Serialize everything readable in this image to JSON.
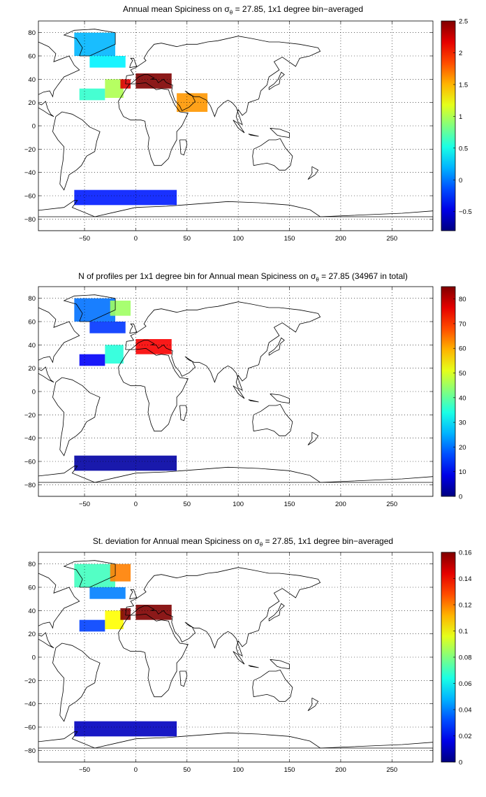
{
  "chart_data": [
    {
      "type": "heatmap",
      "title_prefix": "Annual mean Spiciness on σ",
      "title_sub": "θ",
      "title_suffix": " = 27.85, 1x1 degree bin−averaged",
      "xlim": [
        -95,
        290
      ],
      "ylim": [
        -90,
        90
      ],
      "xticks": [
        -50,
        0,
        50,
        100,
        150,
        200,
        250
      ],
      "yticks": [
        -80,
        -60,
        -40,
        -20,
        0,
        20,
        40,
        60,
        80
      ],
      "grid": true,
      "colorbar": {
        "min": -0.8,
        "max": 2.5,
        "ticks": [
          -0.5,
          0,
          0.5,
          1,
          1.5,
          2,
          2.5
        ]
      },
      "regions": [
        {
          "x": [
            -60,
            -20
          ],
          "y": [
            60,
            80
          ],
          "value": 0.2
        },
        {
          "x": [
            -45,
            -10
          ],
          "y": [
            50,
            60
          ],
          "value": 0.4
        },
        {
          "x": [
            -55,
            -30
          ],
          "y": [
            22,
            32
          ],
          "value": 0.6
        },
        {
          "x": [
            -30,
            -12
          ],
          "y": [
            24,
            40
          ],
          "value": 1.0
        },
        {
          "x": [
            -15,
            -5
          ],
          "y": [
            32,
            40
          ],
          "value": 2.2
        },
        {
          "x": [
            0,
            35
          ],
          "y": [
            32,
            45
          ],
          "value": 2.5
        },
        {
          "x": [
            -60,
            40
          ],
          "y": [
            -68,
            -55
          ],
          "value": -0.3
        },
        {
          "x": [
            40,
            70
          ],
          "y": [
            12,
            28
          ],
          "value": 1.6
        }
      ]
    },
    {
      "type": "heatmap",
      "title_prefix": "N of profiles per 1x1 degree bin for Annual mean Spiciness on σ",
      "title_sub": "θ",
      "title_suffix": " = 27.85 (34967 in total)",
      "xlim": [
        -95,
        290
      ],
      "ylim": [
        -90,
        90
      ],
      "xticks": [
        -50,
        0,
        50,
        100,
        150,
        200,
        250
      ],
      "yticks": [
        -80,
        -60,
        -40,
        -20,
        0,
        20,
        40,
        60,
        80
      ],
      "grid": true,
      "colorbar": {
        "min": 0,
        "max": 85,
        "ticks": [
          0,
          10,
          20,
          30,
          40,
          50,
          60,
          70,
          80
        ]
      },
      "regions": [
        {
          "x": [
            -60,
            -20
          ],
          "y": [
            60,
            80
          ],
          "value": 20
        },
        {
          "x": [
            -25,
            -5
          ],
          "y": [
            65,
            78
          ],
          "value": 45
        },
        {
          "x": [
            -45,
            -10
          ],
          "y": [
            50,
            60
          ],
          "value": 15
        },
        {
          "x": [
            -55,
            -30
          ],
          "y": [
            22,
            32
          ],
          "value": 10
        },
        {
          "x": [
            -30,
            -12
          ],
          "y": [
            24,
            40
          ],
          "value": 35
        },
        {
          "x": [
            0,
            35
          ],
          "y": [
            32,
            45
          ],
          "value": 75
        },
        {
          "x": [
            -60,
            40
          ],
          "y": [
            -68,
            -55
          ],
          "value": 3
        }
      ]
    },
    {
      "type": "heatmap",
      "title_prefix": "St. deviation for Annual mean Spiciness on σ",
      "title_sub": "θ",
      "title_suffix": " = 27.85, 1x1 degree bin−averaged",
      "xlim": [
        -95,
        290
      ],
      "ylim": [
        -90,
        90
      ],
      "xticks": [
        -50,
        0,
        50,
        100,
        150,
        200,
        250
      ],
      "yticks": [
        -80,
        -60,
        -40,
        -20,
        0,
        20,
        40,
        60,
        80
      ],
      "grid": true,
      "colorbar": {
        "min": 0,
        "max": 0.16,
        "ticks": [
          0,
          0.02,
          0.04,
          0.06,
          0.08,
          0.1,
          0.12,
          0.14,
          0.16
        ]
      },
      "regions": [
        {
          "x": [
            -60,
            -20
          ],
          "y": [
            60,
            80
          ],
          "value": 0.07
        },
        {
          "x": [
            -25,
            -5
          ],
          "y": [
            65,
            80
          ],
          "value": 0.12
        },
        {
          "x": [
            -45,
            -10
          ],
          "y": [
            50,
            60
          ],
          "value": 0.04
        },
        {
          "x": [
            -55,
            -30
          ],
          "y": [
            22,
            32
          ],
          "value": 0.03
        },
        {
          "x": [
            -30,
            -12
          ],
          "y": [
            24,
            40
          ],
          "value": 0.1
        },
        {
          "x": [
            -15,
            -5
          ],
          "y": [
            32,
            42
          ],
          "value": 0.16
        },
        {
          "x": [
            0,
            35
          ],
          "y": [
            32,
            45
          ],
          "value": 0.16
        },
        {
          "x": [
            -60,
            40
          ],
          "y": [
            -68,
            -55
          ],
          "value": 0.01
        }
      ]
    }
  ]
}
